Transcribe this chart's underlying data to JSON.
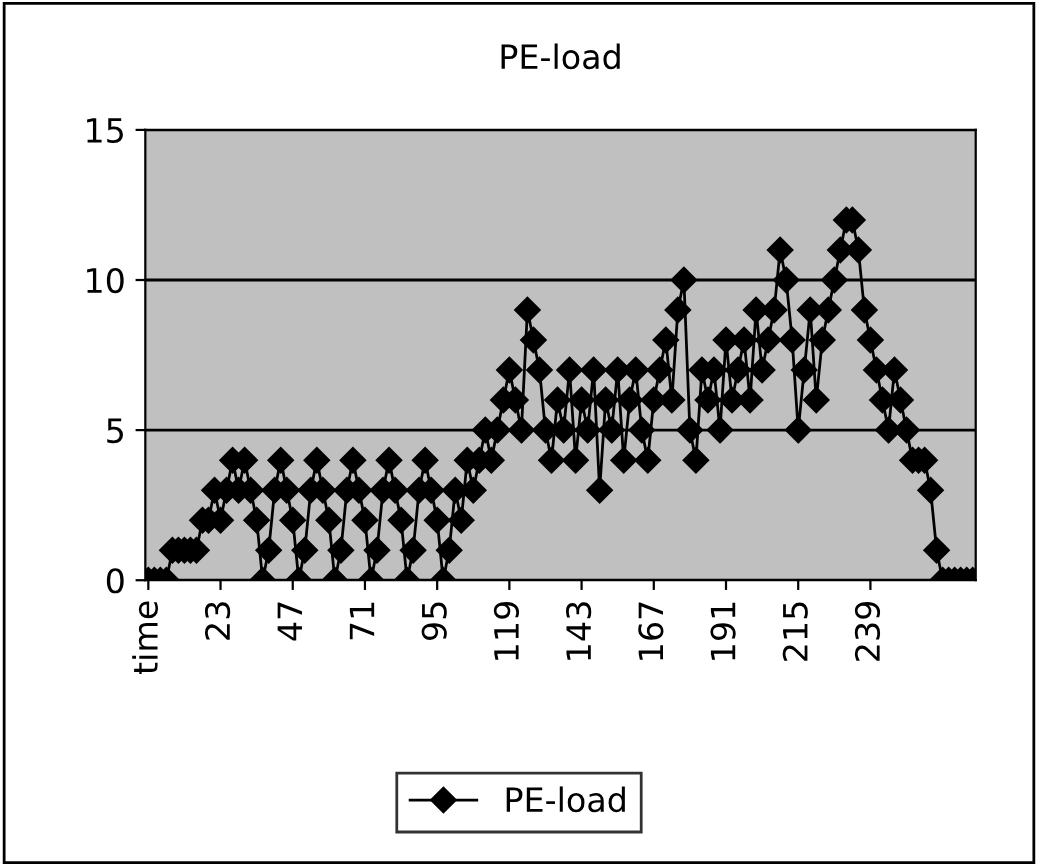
{
  "chart_data": {
    "type": "line",
    "title": "PE-load",
    "categories": [
      "time",
      null,
      null,
      null,
      null,
      null,
      null,
      null,
      null,
      null,
      null,
      null,
      "23",
      null,
      null,
      null,
      null,
      null,
      null,
      null,
      null,
      null,
      null,
      null,
      "47",
      null,
      null,
      null,
      null,
      null,
      null,
      null,
      null,
      null,
      null,
      null,
      "71",
      null,
      null,
      null,
      null,
      null,
      null,
      null,
      null,
      null,
      null,
      null,
      "95",
      null,
      null,
      null,
      null,
      null,
      null,
      null,
      null,
      null,
      null,
      null,
      "119",
      null,
      null,
      null,
      null,
      null,
      null,
      null,
      null,
      null,
      null,
      null,
      "143",
      null,
      null,
      null,
      null,
      null,
      null,
      null,
      null,
      null,
      null,
      null,
      "167",
      null,
      null,
      null,
      null,
      null,
      null,
      null,
      null,
      null,
      null,
      null,
      "191",
      null,
      null,
      null,
      null,
      null,
      null,
      null,
      null,
      null,
      null,
      null,
      "215",
      null,
      null,
      null,
      null,
      null,
      null,
      null,
      null,
      null,
      null,
      null,
      "239",
      null,
      null,
      null,
      null,
      null,
      null,
      null,
      null,
      null,
      null,
      null,
      null,
      null,
      null,
      null,
      null,
      null
    ],
    "series": [
      {
        "name": "PE-load",
        "color": "#000000",
        "values": [
          0,
          0,
          0,
          0,
          1,
          1,
          1,
          1,
          1,
          2,
          2,
          3,
          2,
          3,
          4,
          3,
          4,
          3,
          2,
          0,
          1,
          3,
          4,
          3,
          2,
          0,
          1,
          3,
          4,
          3,
          2,
          0,
          1,
          3,
          4,
          3,
          2,
          0,
          1,
          3,
          4,
          3,
          2,
          0,
          1,
          3,
          4,
          3,
          2,
          0,
          1,
          3,
          2,
          4,
          3,
          4,
          5,
          4,
          5,
          6,
          7,
          6,
          5,
          9,
          8,
          7,
          5,
          4,
          6,
          5,
          7,
          4,
          6,
          5,
          7,
          3,
          6,
          5,
          7,
          4,
          6,
          7,
          5,
          4,
          6,
          7,
          8,
          6,
          9,
          10,
          5,
          4,
          7,
          6,
          7,
          5,
          8,
          6,
          7,
          8,
          6,
          9,
          7,
          8,
          9,
          11,
          10,
          8,
          5,
          7,
          9,
          6,
          8,
          9,
          10,
          11,
          12,
          12,
          11,
          9,
          8,
          7,
          6,
          5,
          7,
          6,
          5,
          4,
          4,
          4,
          3,
          1,
          0,
          0,
          0,
          0,
          0,
          0
        ]
      }
    ],
    "ylim": [
      0,
      15
    ],
    "yticks": [
      0,
      5,
      10,
      15
    ],
    "grid": "y",
    "legend": "bottom",
    "marker": "diamond",
    "line_style": "solid"
  }
}
